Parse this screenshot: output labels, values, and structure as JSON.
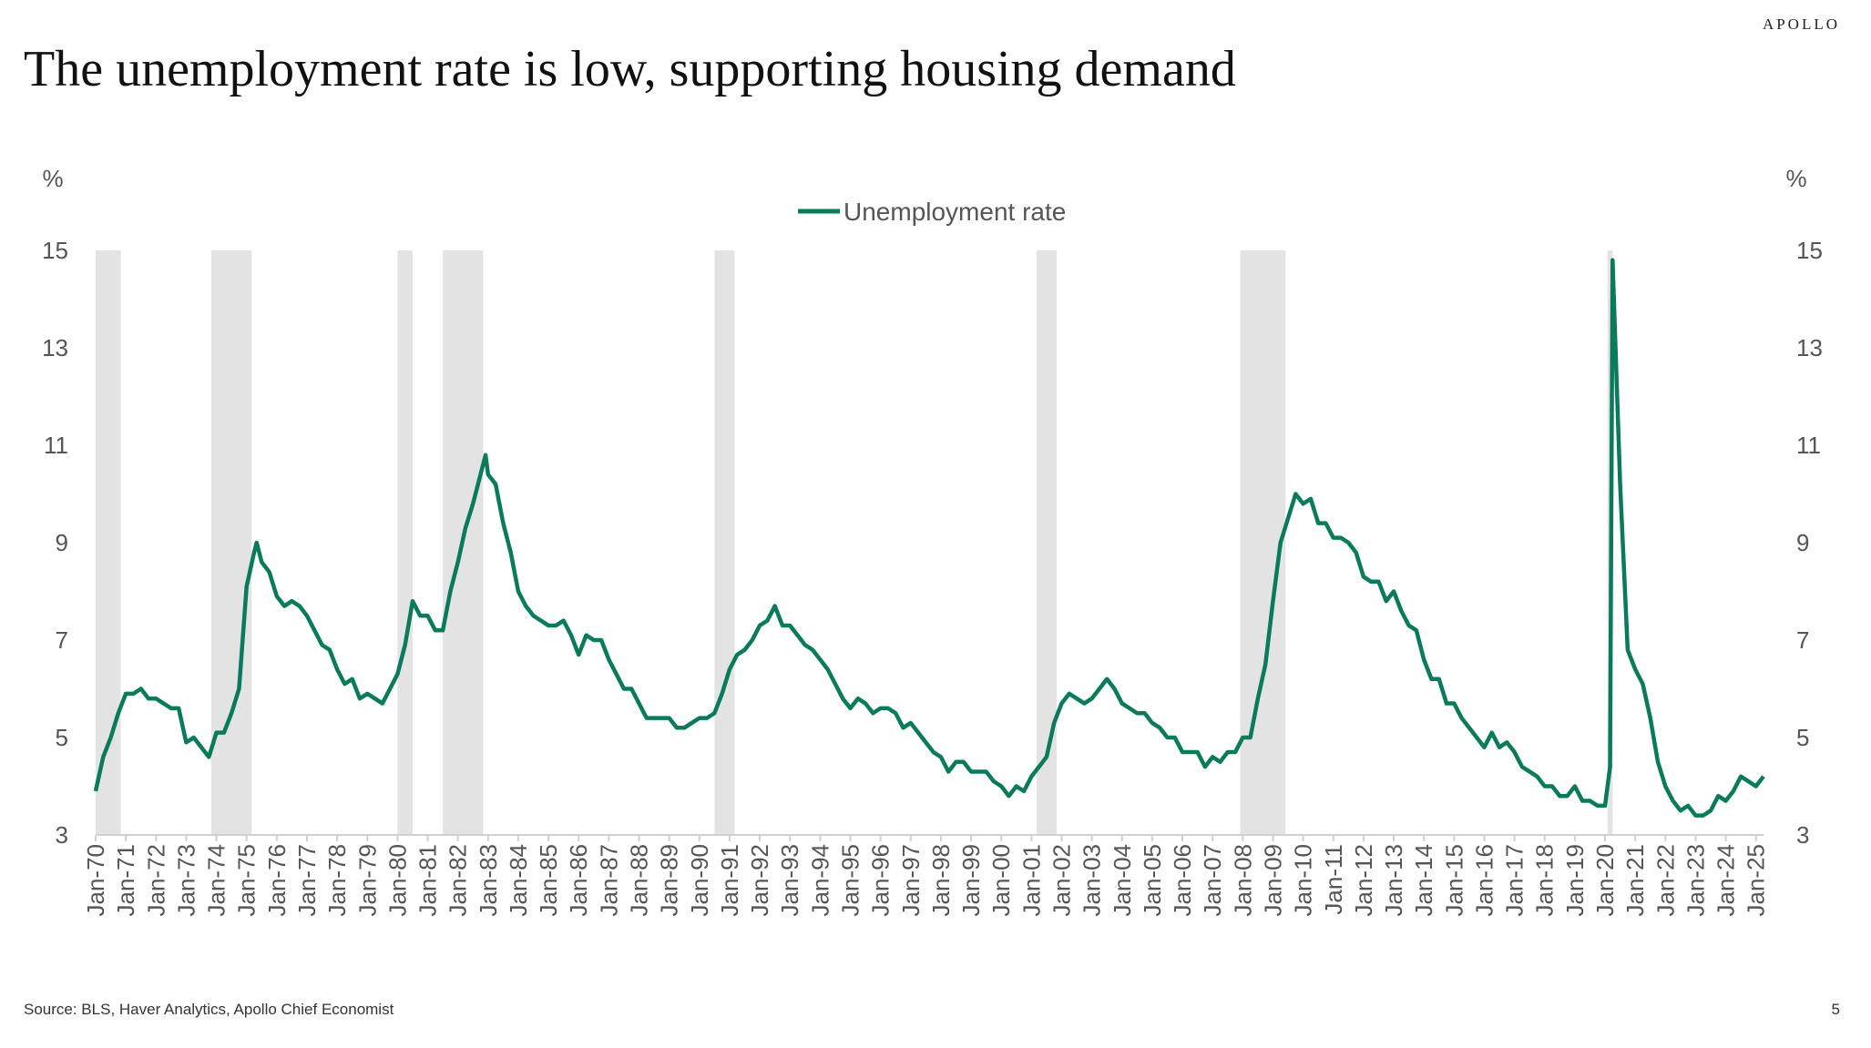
{
  "brand": "APOLLO",
  "source": "Source: BLS, Haver Analytics, Apollo Chief Economist",
  "page_number": "5",
  "chart_data": {
    "type": "line",
    "title": "The unemployment rate is low, supporting housing demand",
    "y_label": "%",
    "y2_label": "%",
    "legend": "top",
    "grid": false,
    "xlim": [
      "1970-01",
      "2025-04"
    ],
    "ylim": [
      3,
      15
    ],
    "yticks": [
      3,
      5,
      7,
      9,
      11,
      13,
      15
    ],
    "y2lim": [
      3,
      15
    ],
    "y2ticks": [
      3,
      5,
      7,
      9,
      11,
      13,
      15
    ],
    "shade_color": "#e3e3e3",
    "shaded_periods": [
      [
        "1970-01",
        "1970-11"
      ],
      [
        "1973-11",
        "1975-03"
      ],
      [
        "1980-01",
        "1980-07"
      ],
      [
        "1981-07",
        "1982-11"
      ],
      [
        "1990-07",
        "1991-03"
      ],
      [
        "2001-03",
        "2001-11"
      ],
      [
        "2007-12",
        "2009-06"
      ],
      [
        "2020-02",
        "2020-04"
      ]
    ],
    "xticks": [
      {
        "value": "1970-01",
        "label": "Jan-70"
      },
      {
        "value": "1971-01",
        "label": "Jan-71"
      },
      {
        "value": "1972-01",
        "label": "Jan-72"
      },
      {
        "value": "1973-01",
        "label": "Jan-73"
      },
      {
        "value": "1974-01",
        "label": "Jan-74"
      },
      {
        "value": "1975-01",
        "label": "Jan-75"
      },
      {
        "value": "1976-01",
        "label": "Jan-76"
      },
      {
        "value": "1977-01",
        "label": "Jan-77"
      },
      {
        "value": "1978-01",
        "label": "Jan-78"
      },
      {
        "value": "1979-01",
        "label": "Jan-79"
      },
      {
        "value": "1980-01",
        "label": "Jan-80"
      },
      {
        "value": "1981-01",
        "label": "Jan-81"
      },
      {
        "value": "1982-01",
        "label": "Jan-82"
      },
      {
        "value": "1983-01",
        "label": "Jan-83"
      },
      {
        "value": "1984-01",
        "label": "Jan-84"
      },
      {
        "value": "1985-01",
        "label": "Jan-85"
      },
      {
        "value": "1986-01",
        "label": "Jan-86"
      },
      {
        "value": "1987-01",
        "label": "Jan-87"
      },
      {
        "value": "1988-01",
        "label": "Jan-88"
      },
      {
        "value": "1989-01",
        "label": "Jan-89"
      },
      {
        "value": "1990-01",
        "label": "Jan-90"
      },
      {
        "value": "1991-01",
        "label": "Jan-91"
      },
      {
        "value": "1992-01",
        "label": "Jan-92"
      },
      {
        "value": "1993-01",
        "label": "Jan-93"
      },
      {
        "value": "1994-01",
        "label": "Jan-94"
      },
      {
        "value": "1995-01",
        "label": "Jan-95"
      },
      {
        "value": "1996-01",
        "label": "Jan-96"
      },
      {
        "value": "1997-01",
        "label": "Jan-97"
      },
      {
        "value": "1998-01",
        "label": "Jan-98"
      },
      {
        "value": "1999-01",
        "label": "Jan-99"
      },
      {
        "value": "2000-01",
        "label": "Jan-00"
      },
      {
        "value": "2001-01",
        "label": "Jan-01"
      },
      {
        "value": "2002-01",
        "label": "Jan-02"
      },
      {
        "value": "2003-01",
        "label": "Jan-03"
      },
      {
        "value": "2004-01",
        "label": "Jan-04"
      },
      {
        "value": "2005-01",
        "label": "Jan-05"
      },
      {
        "value": "2006-01",
        "label": "Jan-06"
      },
      {
        "value": "2007-01",
        "label": "Jan-07"
      },
      {
        "value": "2008-01",
        "label": "Jan-08"
      },
      {
        "value": "2009-01",
        "label": "Jan-09"
      },
      {
        "value": "2010-01",
        "label": "Jan-10"
      },
      {
        "value": "2011-01",
        "label": "Jan-11"
      },
      {
        "value": "2012-01",
        "label": "Jan-12"
      },
      {
        "value": "2013-01",
        "label": "Jan-13"
      },
      {
        "value": "2014-01",
        "label": "Jan-14"
      },
      {
        "value": "2015-01",
        "label": "Jan-15"
      },
      {
        "value": "2016-01",
        "label": "Jan-16"
      },
      {
        "value": "2017-01",
        "label": "Jan-17"
      },
      {
        "value": "2018-01",
        "label": "Jan-18"
      },
      {
        "value": "2019-01",
        "label": "Jan-19"
      },
      {
        "value": "2020-01",
        "label": "Jan-20"
      },
      {
        "value": "2021-01",
        "label": "Jan-21"
      },
      {
        "value": "2022-01",
        "label": "Jan-22"
      },
      {
        "value": "2023-01",
        "label": "Jan-23"
      },
      {
        "value": "2024-01",
        "label": "Jan-24"
      },
      {
        "value": "2025-01",
        "label": "Jan-25"
      }
    ],
    "x": [
      "1970-01",
      "1970-04",
      "1970-07",
      "1970-10",
      "1971-01",
      "1971-04",
      "1971-07",
      "1971-10",
      "1972-01",
      "1972-04",
      "1972-07",
      "1972-10",
      "1973-01",
      "1973-04",
      "1973-07",
      "1973-10",
      "1974-01",
      "1974-04",
      "1974-07",
      "1974-10",
      "1975-01",
      "1975-04",
      "1975-05",
      "1975-07",
      "1975-10",
      "1976-01",
      "1976-04",
      "1976-07",
      "1976-10",
      "1977-01",
      "1977-04",
      "1977-07",
      "1977-10",
      "1978-01",
      "1978-04",
      "1978-07",
      "1978-10",
      "1979-01",
      "1979-04",
      "1979-07",
      "1979-10",
      "1980-01",
      "1980-04",
      "1980-07",
      "1980-10",
      "1981-01",
      "1981-04",
      "1981-07",
      "1981-10",
      "1982-01",
      "1982-04",
      "1982-07",
      "1982-10",
      "1982-12",
      "1983-01",
      "1983-04",
      "1983-07",
      "1983-10",
      "1984-01",
      "1984-04",
      "1984-07",
      "1984-10",
      "1985-01",
      "1985-04",
      "1985-07",
      "1985-10",
      "1986-01",
      "1986-04",
      "1986-07",
      "1986-10",
      "1987-01",
      "1987-04",
      "1987-07",
      "1987-10",
      "1988-01",
      "1988-04",
      "1988-07",
      "1988-10",
      "1989-01",
      "1989-04",
      "1989-07",
      "1989-10",
      "1990-01",
      "1990-04",
      "1990-07",
      "1990-10",
      "1991-01",
      "1991-04",
      "1991-07",
      "1991-10",
      "1992-01",
      "1992-04",
      "1992-07",
      "1992-10",
      "1993-01",
      "1993-04",
      "1993-07",
      "1993-10",
      "1994-01",
      "1994-04",
      "1994-07",
      "1994-10",
      "1995-01",
      "1995-04",
      "1995-07",
      "1995-10",
      "1996-01",
      "1996-04",
      "1996-07",
      "1996-10",
      "1997-01",
      "1997-04",
      "1997-07",
      "1997-10",
      "1998-01",
      "1998-04",
      "1998-07",
      "1998-10",
      "1999-01",
      "1999-04",
      "1999-07",
      "1999-10",
      "2000-01",
      "2000-04",
      "2000-07",
      "2000-10",
      "2001-01",
      "2001-04",
      "2001-07",
      "2001-10",
      "2002-01",
      "2002-04",
      "2002-07",
      "2002-10",
      "2003-01",
      "2003-04",
      "2003-07",
      "2003-10",
      "2004-01",
      "2004-04",
      "2004-07",
      "2004-10",
      "2005-01",
      "2005-04",
      "2005-07",
      "2005-10",
      "2006-01",
      "2006-04",
      "2006-07",
      "2006-10",
      "2007-01",
      "2007-04",
      "2007-07",
      "2007-10",
      "2008-01",
      "2008-04",
      "2008-07",
      "2008-10",
      "2009-01",
      "2009-04",
      "2009-07",
      "2009-10",
      "2010-01",
      "2010-04",
      "2010-07",
      "2010-10",
      "2011-01",
      "2011-04",
      "2011-07",
      "2011-10",
      "2012-01",
      "2012-04",
      "2012-07",
      "2012-10",
      "2013-01",
      "2013-04",
      "2013-07",
      "2013-10",
      "2014-01",
      "2014-04",
      "2014-07",
      "2014-10",
      "2015-01",
      "2015-04",
      "2015-07",
      "2015-10",
      "2016-01",
      "2016-04",
      "2016-07",
      "2016-10",
      "2017-01",
      "2017-04",
      "2017-07",
      "2017-10",
      "2018-01",
      "2018-04",
      "2018-07",
      "2018-10",
      "2019-01",
      "2019-04",
      "2019-07",
      "2019-10",
      "2020-01",
      "2020-03",
      "2020-04",
      "2020-07",
      "2020-10",
      "2021-01",
      "2021-04",
      "2021-07",
      "2021-10",
      "2022-01",
      "2022-04",
      "2022-07",
      "2022-10",
      "2023-01",
      "2023-04",
      "2023-07",
      "2023-10",
      "2024-01",
      "2024-04",
      "2024-07",
      "2024-10",
      "2025-01",
      "2025-04"
    ],
    "series": [
      {
        "name": "Unemployment rate",
        "color": "#0a7a5c",
        "values": [
          3.9,
          4.6,
          5.0,
          5.5,
          5.9,
          5.9,
          6.0,
          5.8,
          5.8,
          5.7,
          5.6,
          5.6,
          4.9,
          5.0,
          4.8,
          4.6,
          5.1,
          5.1,
          5.5,
          6.0,
          8.1,
          8.8,
          9.0,
          8.6,
          8.4,
          7.9,
          7.7,
          7.8,
          7.7,
          7.5,
          7.2,
          6.9,
          6.8,
          6.4,
          6.1,
          6.2,
          5.8,
          5.9,
          5.8,
          5.7,
          6.0,
          6.3,
          6.9,
          7.8,
          7.5,
          7.5,
          7.2,
          7.2,
          8.0,
          8.6,
          9.3,
          9.8,
          10.4,
          10.8,
          10.4,
          10.2,
          9.4,
          8.8,
          8.0,
          7.7,
          7.5,
          7.4,
          7.3,
          7.3,
          7.4,
          7.1,
          6.7,
          7.1,
          7.0,
          7.0,
          6.6,
          6.3,
          6.0,
          6.0,
          5.7,
          5.4,
          5.4,
          5.4,
          5.4,
          5.2,
          5.2,
          5.3,
          5.4,
          5.4,
          5.5,
          5.9,
          6.4,
          6.7,
          6.8,
          7.0,
          7.3,
          7.4,
          7.7,
          7.3,
          7.3,
          7.1,
          6.9,
          6.8,
          6.6,
          6.4,
          6.1,
          5.8,
          5.6,
          5.8,
          5.7,
          5.5,
          5.6,
          5.6,
          5.5,
          5.2,
          5.3,
          5.1,
          4.9,
          4.7,
          4.6,
          4.3,
          4.5,
          4.5,
          4.3,
          4.3,
          4.3,
          4.1,
          4.0,
          3.8,
          4.0,
          3.9,
          4.2,
          4.4,
          4.6,
          5.3,
          5.7,
          5.9,
          5.8,
          5.7,
          5.8,
          6.0,
          6.2,
          6.0,
          5.7,
          5.6,
          5.5,
          5.5,
          5.3,
          5.2,
          5.0,
          5.0,
          4.7,
          4.7,
          4.7,
          4.4,
          4.6,
          4.5,
          4.7,
          4.7,
          5.0,
          5.0,
          5.8,
          6.5,
          7.8,
          9.0,
          9.5,
          10.0,
          9.8,
          9.9,
          9.4,
          9.4,
          9.1,
          9.1,
          9.0,
          8.8,
          8.3,
          8.2,
          8.2,
          7.8,
          8.0,
          7.6,
          7.3,
          7.2,
          6.6,
          6.2,
          6.2,
          5.7,
          5.7,
          5.4,
          5.2,
          5.0,
          4.8,
          5.1,
          4.8,
          4.9,
          4.7,
          4.4,
          4.3,
          4.2,
          4.0,
          4.0,
          3.8,
          3.8,
          4.0,
          3.7,
          3.7,
          3.6,
          3.6,
          4.4,
          14.8,
          10.2,
          6.8,
          6.4,
          6.1,
          5.4,
          4.5,
          4.0,
          3.7,
          3.5,
          3.6,
          3.4,
          3.4,
          3.5,
          3.8,
          3.7,
          3.9,
          4.2,
          4.1,
          4.0,
          4.2
        ]
      }
    ]
  }
}
